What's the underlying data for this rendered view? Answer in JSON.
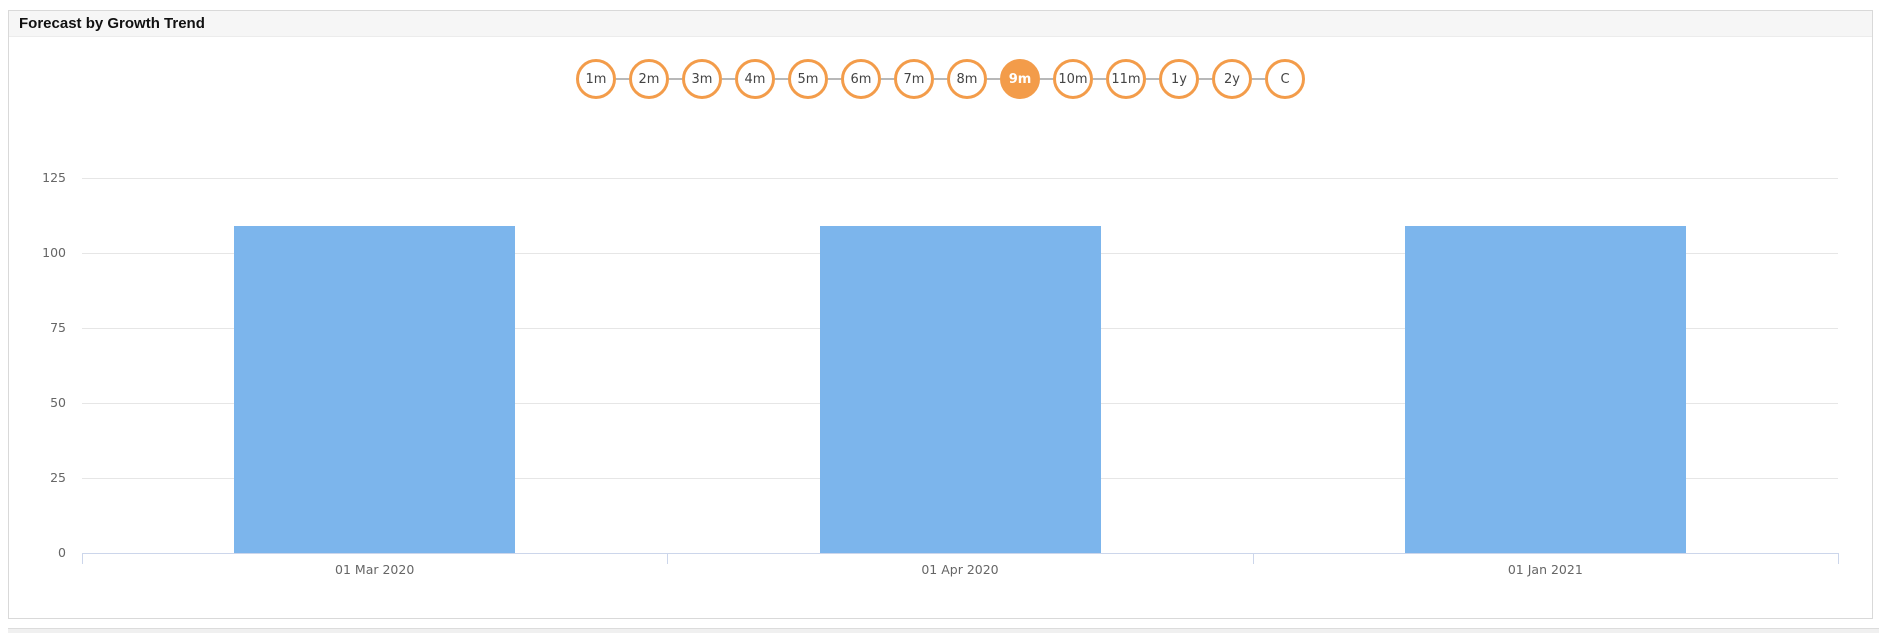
{
  "panel": {
    "title": "Forecast by Growth Trend"
  },
  "range_selector": {
    "options": [
      {
        "label": "1m",
        "active": false
      },
      {
        "label": "2m",
        "active": false
      },
      {
        "label": "3m",
        "active": false
      },
      {
        "label": "4m",
        "active": false
      },
      {
        "label": "5m",
        "active": false
      },
      {
        "label": "6m",
        "active": false
      },
      {
        "label": "7m",
        "active": false
      },
      {
        "label": "8m",
        "active": false
      },
      {
        "label": "9m",
        "active": true
      },
      {
        "label": "10m",
        "active": false
      },
      {
        "label": "11m",
        "active": false
      },
      {
        "label": "1y",
        "active": false
      },
      {
        "label": "2y",
        "active": false
      },
      {
        "label": "C",
        "active": false
      }
    ],
    "accent_color": "#f39c4a"
  },
  "chart_data": {
    "type": "bar",
    "title": "Forecast by Growth Trend",
    "categories": [
      "01 Mar 2020",
      "01 Apr 2020",
      "01 Jan 2021"
    ],
    "values": [
      109,
      109,
      109
    ],
    "xlabel": "",
    "ylabel": "",
    "ylim": [
      0,
      125
    ],
    "yticks": [
      0,
      25,
      50,
      75,
      100,
      125
    ],
    "grid": true,
    "legend": "none",
    "bar_color": "#7cb5ec",
    "gridline_color": "#e6e6e6",
    "axis_line_color": "#ccd6eb",
    "label_color": "#666666"
  }
}
